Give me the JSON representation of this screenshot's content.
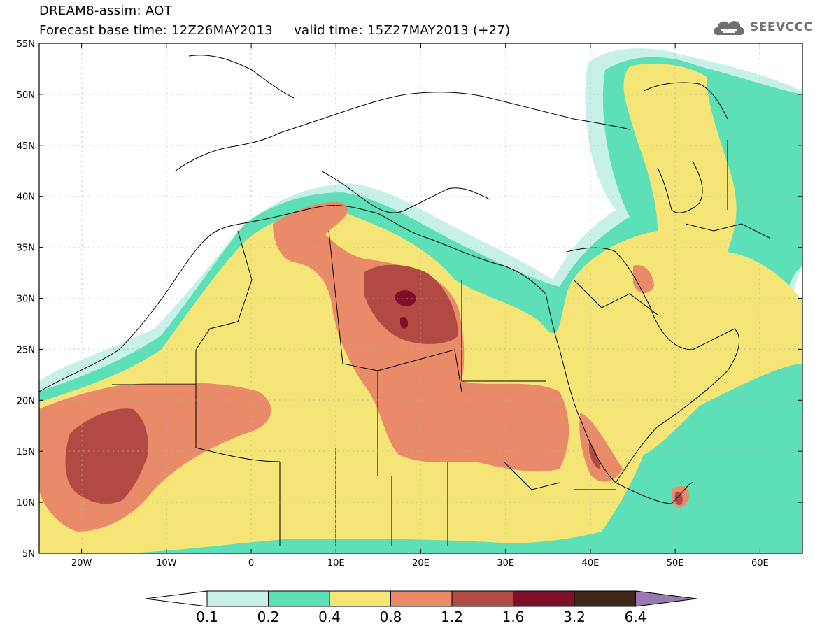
{
  "header": {
    "model_title": "DREAM8-assim: AOT",
    "forecast_line": "Forecast base time: 12Z26MAY2013     valid time: 15Z27MAY2013 (+27)"
  },
  "logo": {
    "text": "SEEVCCC",
    "icon": "cloud-icon"
  },
  "map": {
    "lat_ticks": [
      "55N",
      "50N",
      "45N",
      "40N",
      "35N",
      "30N",
      "25N",
      "20N",
      "15N",
      "10N",
      "5N"
    ],
    "lon_ticks": [
      "20W",
      "10W",
      "0",
      "10E",
      "20E",
      "30E",
      "40E",
      "50E",
      "60E"
    ],
    "lon_range": [
      -25,
      65
    ],
    "lat_range": [
      5,
      55
    ]
  },
  "legend": {
    "values": [
      "0.1",
      "0.2",
      "0.4",
      "0.8",
      "1.2",
      "1.6",
      "3.2",
      "6.4"
    ],
    "colors": [
      "#ffffff",
      "#c7f0e8",
      "#5ddfb8",
      "#f5e576",
      "#e98a69",
      "#b04a42",
      "#7d0f2a",
      "#3f2818",
      "#9a78b2"
    ]
  },
  "fields": {
    "c_ice": "#c7f0e8",
    "c_green": "#5ddfb8",
    "c_yellow": "#f5e576",
    "c_orange": "#e98a69",
    "c_brown": "#b04a42",
    "c_maroon": "#7d0f2a"
  }
}
